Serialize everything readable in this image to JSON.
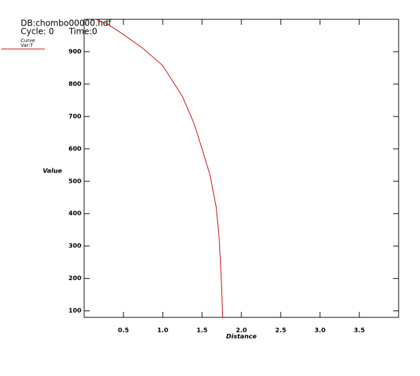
{
  "chart_data": {
    "type": "line",
    "db_label": "DB:chombo00000.hdf",
    "cycle_label": "Cycle: 0",
    "time_label": "Time:0",
    "legend_title": "Curve",
    "legend_var": "Var:T",
    "xlabel": "Distance",
    "ylabel": "Value",
    "x": [
      0.15,
      0.3,
      0.5,
      0.75,
      1.0,
      1.25,
      1.4,
      1.5,
      1.6,
      1.68,
      1.72,
      1.75,
      1.76
    ],
    "series": [
      {
        "name": "Var:T",
        "color": "#cc0000",
        "values": [
          1000,
          985,
          953,
          910,
          857,
          762,
          677,
          600,
          520,
          420,
          317,
          168,
          81
        ]
      }
    ],
    "xlim": [
      0,
      4
    ],
    "ylim": [
      80,
      1000
    ],
    "xticks": [
      0.5,
      {
        "value": 1,
        "label": "1.0"
      },
      1.5,
      {
        "value": 2,
        "label": "2.0"
      },
      2.5,
      {
        "value": 3,
        "label": "3.0"
      },
      3.5
    ],
    "yticks": [
      100,
      200,
      300,
      400,
      500,
      600,
      700,
      800,
      900
    ]
  }
}
